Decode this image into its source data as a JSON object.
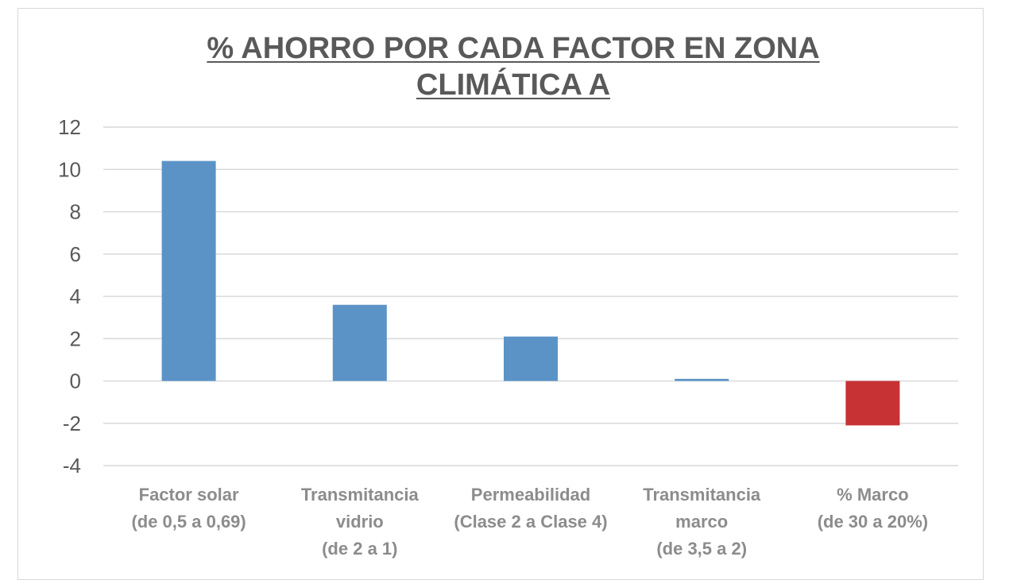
{
  "chart_data": {
    "type": "bar",
    "title": "% AHORRO POR CADA FACTOR EN ZONA CLIMÁTICA A",
    "title_lines": [
      "% AHORRO POR CADA FACTOR EN ZONA",
      "CLIMÁTICA A"
    ],
    "xlabel": "",
    "ylabel": "",
    "ylim": [
      -4,
      12
    ],
    "yticks": [
      12,
      10,
      8,
      6,
      4,
      2,
      0,
      -2,
      -4
    ],
    "grid": true,
    "categories": [
      [
        "Factor solar",
        "(de 0,5 a 0,69)"
      ],
      [
        "Transmitancia",
        "vidrio",
        "(de 2 a 1)"
      ],
      [
        "Permeabilidad",
        "(Clase 2 a Clase 4)"
      ],
      [
        "Transmitancia",
        "marco",
        "(de 3,5 a 2)"
      ],
      [
        "% Marco",
        "(de 30 a 20%)"
      ]
    ],
    "values": [
      10.4,
      3.6,
      2.1,
      0.1,
      -2.1
    ],
    "colors": {
      "positive": "#5B93C7",
      "negative": "#C73234",
      "grid": "#d9d9d9",
      "text": "#595959",
      "category_text": "#8c8c8c"
    }
  }
}
